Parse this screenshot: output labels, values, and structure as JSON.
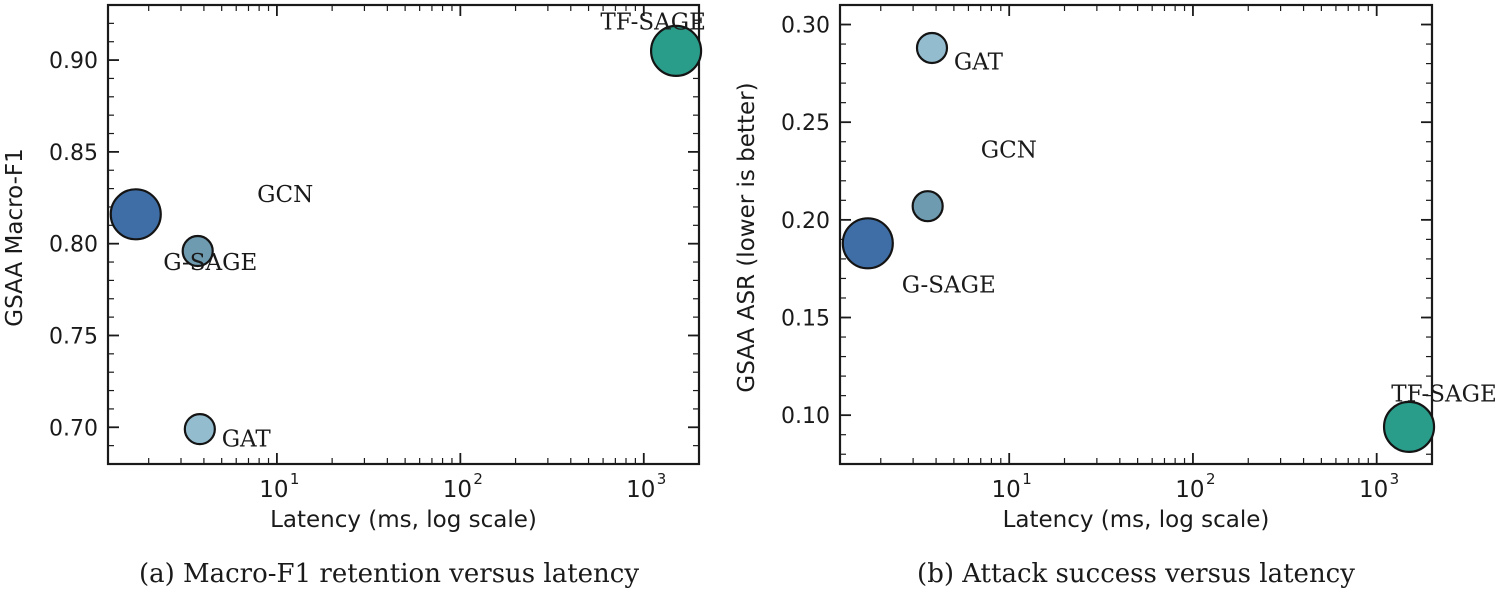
{
  "chart_data": [
    {
      "type": "scatter",
      "caption": "(a) Macro-F1 retention versus latency",
      "xlabel": "Latency (ms, log scale)",
      "ylabel": "GSAA Macro-F1",
      "xscale": "log",
      "xlim": [
        1.2,
        2000
      ],
      "ylim": [
        0.68,
        0.93
      ],
      "xticks": [
        {
          "value": 10,
          "label": "10",
          "exp": "1"
        },
        {
          "value": 100,
          "label": "10",
          "exp": "2"
        },
        {
          "value": 1000,
          "label": "10",
          "exp": "3"
        }
      ],
      "yticks": [
        {
          "value": 0.7,
          "label": "0.70"
        },
        {
          "value": 0.75,
          "label": "0.75"
        },
        {
          "value": 0.8,
          "label": "0.80"
        },
        {
          "value": 0.85,
          "label": "0.85"
        },
        {
          "value": 0.9,
          "label": "0.90"
        }
      ],
      "grid": false,
      "points": [
        {
          "x": 1.7,
          "y": 0.816,
          "size": "large",
          "color": "#3f6ea6"
        },
        {
          "x": 3.7,
          "y": 0.796,
          "size": "small",
          "color": "#6f9bb0"
        },
        {
          "x": 3.8,
          "y": 0.699,
          "size": "small",
          "color": "#93bccf"
        },
        {
          "x": 1500,
          "y": 0.905,
          "size": "large",
          "color": "#2a9d8a"
        }
      ],
      "labels": [
        {
          "text": "GCN",
          "x": 7.8,
          "y": 0.827
        },
        {
          "text": "G-SAGE",
          "x": 2.4,
          "y": 0.79
        },
        {
          "text": "GAT",
          "x": 5.0,
          "y": 0.694
        },
        {
          "text": "TF-SAGE",
          "x": 580,
          "y": 0.921
        }
      ]
    },
    {
      "type": "scatter",
      "caption": "(b) Attack success versus latency",
      "xlabel": "Latency (ms, log scale)",
      "ylabel": "GSAA ASR (lower is better)",
      "xscale": "log",
      "xlim": [
        1.2,
        2000
      ],
      "ylim": [
        0.075,
        0.31
      ],
      "xticks": [
        {
          "value": 10,
          "label": "10",
          "exp": "1"
        },
        {
          "value": 100,
          "label": "10",
          "exp": "2"
        },
        {
          "value": 1000,
          "label": "10",
          "exp": "3"
        }
      ],
      "yticks": [
        {
          "value": 0.1,
          "label": "0.10"
        },
        {
          "value": 0.15,
          "label": "0.15"
        },
        {
          "value": 0.2,
          "label": "0.20"
        },
        {
          "value": 0.25,
          "label": "0.25"
        },
        {
          "value": 0.3,
          "label": "0.30"
        }
      ],
      "grid": false,
      "points": [
        {
          "x": 3.8,
          "y": 0.288,
          "size": "small",
          "color": "#93bccf"
        },
        {
          "x": 3.6,
          "y": 0.207,
          "size": "small",
          "color": "#6f9bb0"
        },
        {
          "x": 1.7,
          "y": 0.188,
          "size": "large",
          "color": "#3f6ea6"
        },
        {
          "x": 1500,
          "y": 0.094,
          "size": "large",
          "color": "#2a9d8a"
        }
      ],
      "labels": [
        {
          "text": "GAT",
          "x": 5.0,
          "y": 0.281
        },
        {
          "text": "GCN",
          "x": 7.0,
          "y": 0.236
        },
        {
          "text": "G-SAGE",
          "x": 2.6,
          "y": 0.167
        },
        {
          "text": "TF-SAGE",
          "x": 1200,
          "y": 0.111
        }
      ]
    }
  ]
}
